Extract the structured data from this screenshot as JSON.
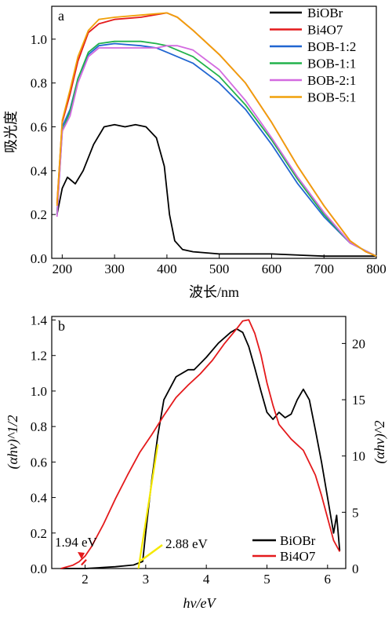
{
  "chart_data": [
    {
      "type": "line",
      "panel_label": "a",
      "xlabel": "波长/nm",
      "ylabel": "吸光度",
      "xlim": [
        180,
        800
      ],
      "ylim": [
        0,
        1.15
      ],
      "xticks": [
        200,
        300,
        400,
        500,
        600,
        700,
        800
      ],
      "yticks": [
        0.0,
        0.2,
        0.4,
        0.6,
        0.8,
        1.0
      ],
      "ytick_labels": [
        "0.0",
        "0.2",
        "0.4",
        "0.6",
        "0.8",
        "1.0"
      ],
      "legend_position": "top-right",
      "series": [
        {
          "name": "BiOBr",
          "color": "#000000",
          "x": [
            190,
            200,
            210,
            215,
            225,
            240,
            260,
            280,
            300,
            320,
            340,
            360,
            380,
            395,
            405,
            415,
            430,
            450,
            500,
            600,
            700,
            800
          ],
          "y": [
            0.2,
            0.32,
            0.37,
            0.36,
            0.34,
            0.4,
            0.52,
            0.6,
            0.61,
            0.6,
            0.61,
            0.6,
            0.55,
            0.42,
            0.2,
            0.08,
            0.04,
            0.03,
            0.02,
            0.02,
            0.01,
            0.01
          ]
        },
        {
          "name": "Bi4O7",
          "color": "#e41a1c",
          "x": [
            190,
            200,
            215,
            230,
            250,
            270,
            300,
            350,
            400,
            420,
            450,
            500,
            550,
            600,
            650,
            700,
            750,
            780,
            800
          ],
          "y": [
            0.25,
            0.62,
            0.75,
            0.9,
            1.03,
            1.07,
            1.09,
            1.1,
            1.12,
            1.1,
            1.04,
            0.93,
            0.8,
            0.62,
            0.42,
            0.24,
            0.08,
            0.03,
            0.01
          ]
        },
        {
          "name": "BOB-1:2",
          "color": "#2166d1",
          "x": [
            190,
            200,
            215,
            230,
            250,
            270,
            300,
            350,
            380,
            400,
            420,
            450,
            500,
            550,
            600,
            650,
            700,
            750,
            800
          ],
          "y": [
            0.2,
            0.6,
            0.68,
            0.82,
            0.93,
            0.97,
            0.98,
            0.97,
            0.96,
            0.94,
            0.92,
            0.89,
            0.8,
            0.68,
            0.52,
            0.34,
            0.19,
            0.07,
            0.01
          ]
        },
        {
          "name": "BOB-1:1",
          "color": "#22b24c",
          "x": [
            190,
            200,
            215,
            230,
            250,
            270,
            300,
            350,
            380,
            400,
            420,
            450,
            500,
            550,
            600,
            650,
            700,
            750,
            800
          ],
          "y": [
            0.2,
            0.58,
            0.67,
            0.82,
            0.94,
            0.98,
            0.99,
            0.99,
            0.98,
            0.97,
            0.95,
            0.92,
            0.83,
            0.7,
            0.54,
            0.36,
            0.2,
            0.07,
            0.01
          ]
        },
        {
          "name": "BOB-2:1",
          "color": "#d36be0",
          "x": [
            190,
            200,
            215,
            230,
            250,
            270,
            300,
            350,
            380,
            400,
            420,
            450,
            500,
            550,
            600,
            650,
            700,
            750,
            800
          ],
          "y": [
            0.19,
            0.58,
            0.65,
            0.8,
            0.92,
            0.96,
            0.96,
            0.96,
            0.96,
            0.97,
            0.97,
            0.95,
            0.86,
            0.72,
            0.55,
            0.37,
            0.21,
            0.07,
            0.01
          ]
        },
        {
          "name": "BOB-5:1",
          "color": "#f0a10a",
          "x": [
            190,
            200,
            215,
            230,
            250,
            270,
            300,
            350,
            400,
            420,
            450,
            500,
            550,
            600,
            650,
            700,
            750,
            780,
            800
          ],
          "y": [
            0.24,
            0.63,
            0.77,
            0.92,
            1.04,
            1.09,
            1.1,
            1.11,
            1.12,
            1.1,
            1.04,
            0.93,
            0.8,
            0.62,
            0.42,
            0.24,
            0.08,
            0.03,
            0.01
          ]
        }
      ]
    },
    {
      "type": "line",
      "panel_label": "b",
      "xlabel": "hv/eV",
      "ylabel": "(αhv)^1/2",
      "ylabel_right": "(αhv)^2",
      "xlim": [
        1.45,
        6.3
      ],
      "ylim": [
        0,
        1.42
      ],
      "ylim_right": [
        0,
        22.4
      ],
      "xticks": [
        2,
        3,
        4,
        5,
        6
      ],
      "yticks": [
        0.0,
        0.2,
        0.4,
        0.6,
        0.8,
        1.0,
        1.2,
        1.4
      ],
      "ytick_labels": [
        "0.0",
        "0.2",
        "0.4",
        "0.6",
        "0.8",
        "1.0",
        "1.2",
        "1.4"
      ],
      "yticks_right": [
        0,
        5,
        10,
        15,
        20
      ],
      "legend_position": "bottom-right",
      "annotations": [
        {
          "text": "1.94 eV",
          "x": 1.94,
          "y": 0.0,
          "color": "#e41a1c"
        },
        {
          "text": "2.88 eV",
          "x": 2.88,
          "y": 0.0,
          "color": "#f5e900"
        }
      ],
      "tangent_lines": [
        {
          "color": "#f5e900",
          "x": [
            2.88,
            3.2
          ],
          "y": [
            0.0,
            0.7
          ]
        },
        {
          "color": "#e41a1c",
          "x": [
            1.94,
            2.02
          ],
          "y": [
            0.02,
            0.05
          ]
        }
      ],
      "series": [
        {
          "name": "BiOBr",
          "axis": "left",
          "color": "#000000",
          "x": [
            1.6,
            2.0,
            2.5,
            2.8,
            2.95,
            3.0,
            3.1,
            3.2,
            3.3,
            3.5,
            3.7,
            3.8,
            4.0,
            4.2,
            4.4,
            4.5,
            4.6,
            4.7,
            4.8,
            4.9,
            5.0,
            5.1,
            5.2,
            5.3,
            5.4,
            5.5,
            5.6,
            5.7,
            5.8,
            5.9,
            6.0,
            6.1,
            6.15,
            6.2
          ],
          "y": [
            0.0,
            0.0,
            0.01,
            0.02,
            0.04,
            0.2,
            0.5,
            0.75,
            0.95,
            1.08,
            1.12,
            1.12,
            1.19,
            1.27,
            1.33,
            1.35,
            1.33,
            1.25,
            1.13,
            1.0,
            0.88,
            0.84,
            0.88,
            0.85,
            0.87,
            0.95,
            1.01,
            0.95,
            0.78,
            0.6,
            0.4,
            0.2,
            0.3,
            0.1
          ]
        },
        {
          "name": "Bi4O7",
          "axis": "right",
          "color": "#e41a1c",
          "x": [
            1.6,
            1.8,
            1.9,
            2.0,
            2.1,
            2.3,
            2.5,
            2.7,
            2.9,
            3.1,
            3.3,
            3.5,
            3.7,
            3.9,
            4.1,
            4.3,
            4.5,
            4.6,
            4.7,
            4.8,
            4.9,
            5.0,
            5.1,
            5.2,
            5.4,
            5.6,
            5.8,
            5.9,
            6.0,
            6.1,
            6.2
          ],
          "y": [
            0.0,
            0.3,
            0.6,
            1.1,
            1.9,
            3.9,
            6.2,
            8.3,
            10.3,
            11.9,
            13.6,
            15.2,
            16.3,
            17.3,
            18.5,
            20.0,
            21.3,
            22.0,
            22.1,
            20.9,
            19.0,
            16.5,
            14.5,
            12.8,
            11.5,
            10.5,
            8.3,
            6.5,
            4.5,
            2.5,
            1.5
          ]
        }
      ]
    }
  ]
}
